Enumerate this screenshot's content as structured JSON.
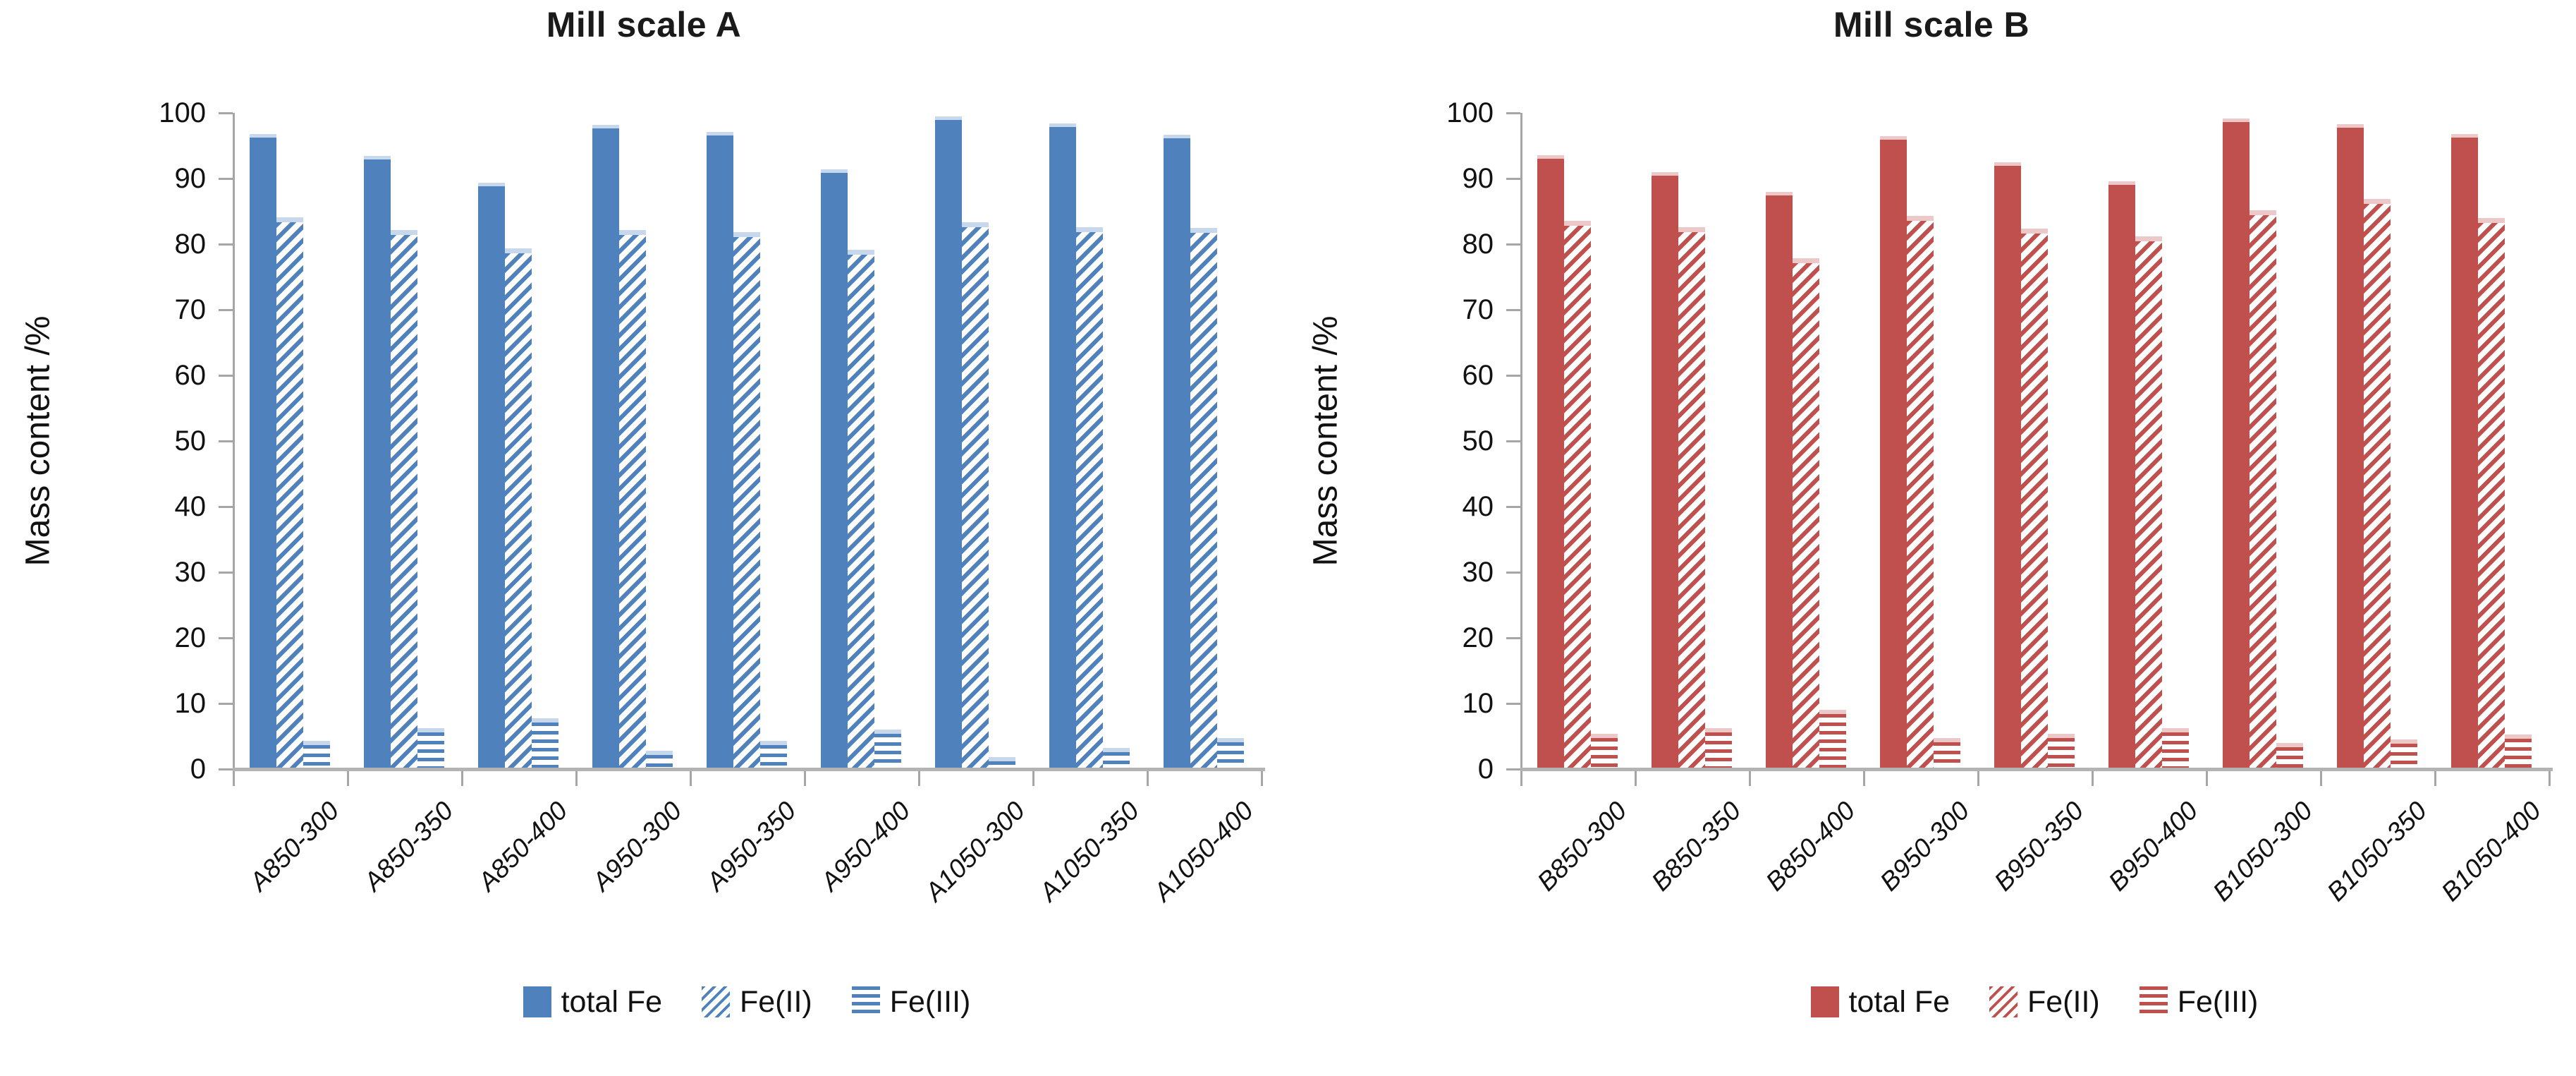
{
  "page": {
    "background": "#FFFFFF"
  },
  "chart_data": [
    {
      "type": "bar",
      "title": "Mill scale A",
      "ylabel": "Mass content /%",
      "xlabel": "",
      "ylim": [
        0,
        100
      ],
      "ytick_step": 10,
      "grid": false,
      "legend_position": "bottom",
      "colors": {
        "accent": "#4F81BD",
        "cap": "#C7D7EC"
      },
      "categories": [
        "A850-300",
        "A850-350",
        "A850-400",
        "A950-300",
        "A950-350",
        "A950-400",
        "A1050-300",
        "A1050-350",
        "A1050-400"
      ],
      "series": [
        {
          "name": "total Fe",
          "pattern": "solid",
          "values": [
            96.8,
            93.4,
            89.4,
            98.2,
            97.1,
            91.4,
            99.5,
            98.4,
            96.7
          ]
        },
        {
          "name": "Fe(II)",
          "pattern": "diag",
          "values": [
            84.1,
            82.1,
            79.4,
            82.2,
            81.8,
            79.1,
            83.3,
            82.6,
            82.5
          ]
        },
        {
          "name": "Fe(III)",
          "pattern": "horiz",
          "values": [
            4.3,
            6.2,
            7.7,
            2.8,
            4.3,
            6.0,
            1.8,
            3.2,
            4.7
          ]
        }
      ]
    },
    {
      "type": "bar",
      "title": "Mill scale B",
      "ylabel": "Mass content /%",
      "xlabel": "",
      "ylim": [
        0,
        100
      ],
      "ytick_step": 10,
      "grid": false,
      "legend_position": "bottom",
      "colors": {
        "accent": "#C0504D",
        "cap": "#ECC9C8"
      },
      "categories": [
        "B850-300",
        "B850-350",
        "B850-400",
        "B950-300",
        "B950-350",
        "B950-400",
        "B1050-300",
        "B1050-350",
        "B1050-400"
      ],
      "series": [
        {
          "name": "total Fe",
          "pattern": "solid",
          "values": [
            93.5,
            91.0,
            88.0,
            96.4,
            92.5,
            89.6,
            99.1,
            98.3,
            96.8
          ]
        },
        {
          "name": "Fe(II)",
          "pattern": "diag",
          "values": [
            83.5,
            82.6,
            77.9,
            84.3,
            82.4,
            81.2,
            85.2,
            86.9,
            84.0
          ]
        },
        {
          "name": "Fe(III)",
          "pattern": "horiz",
          "values": [
            5.4,
            6.2,
            9.0,
            4.7,
            5.4,
            6.2,
            4.0,
            4.5,
            5.3
          ]
        }
      ]
    }
  ]
}
